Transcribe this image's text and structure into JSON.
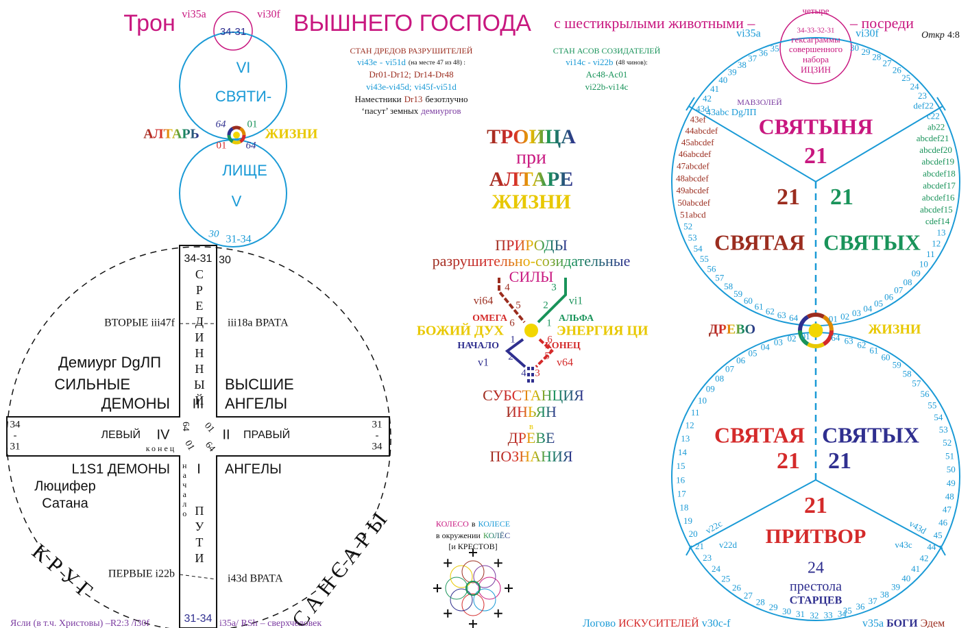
{
  "header": {
    "throne": "Трон",
    "vi35a": "vi35a",
    "inner": "34-31",
    "vi30f": "vi30f",
    "title": "ВЫШНЕГО ГОСПОДА",
    "with": "с шестикрылыми животными –",
    "middle": "– посреди",
    "ref": "Откр",
    "ref_verse": "4:8"
  },
  "hexagrams": {
    "lines": [
      "четыре",
      "34-33-32-31",
      "гексаграммы",
      "совершенного",
      "набора",
      "ИЦЗИН"
    ],
    "vi35a": "vi35a",
    "vi30f": "vi30f"
  },
  "altar_circles": {
    "vi": "VI",
    "holy": "СВЯТИ-",
    "altar": "АЛТАРЬ",
    "life": "ЖИЗНИ",
    "n64_top": "64",
    "n01_top": "01",
    "n01_bottom": "01",
    "n64_bottom": "64",
    "face": "ЛИЩЕ",
    "v": "V",
    "n30": "30",
    "n31_34": "31-34"
  },
  "cross": {
    "top_box": "34-31",
    "top_30": "30",
    "middle": "СРЕДИННЫЙ",
    "iii": "III",
    "second_left": "ВТОРЫЕ iii47f",
    "second_right": "iii18a ВРАТА",
    "demiurge": "Демиург DgЛП",
    "strong": "СИЛЬНЫЕ",
    "demons_top": "ДЕМОНЫ",
    "higher": "ВЫСШИЕ",
    "angels_top": "АНГЕЛЫ",
    "left_end": [
      "34",
      "-",
      "31"
    ],
    "left": "ЛЕВЫЙ",
    "iv": "IV",
    "end": "конец",
    "n64a": "64",
    "n01a": "01",
    "n01b": "01",
    "n64b": "64",
    "ii": "II",
    "right": "ПРАВЫЙ",
    "right_end": [
      "31",
      "-",
      "34"
    ],
    "l1s1": "L1S1 ДЕМОНЫ",
    "lucifer": "Люцифер",
    "satan": "Сатана",
    "i": "I",
    "angels_bottom": "АНГЕЛЫ",
    "beginning": "начало",
    "path": "ПУТИ",
    "first_left": "ПЕРВЫЕ i22b",
    "first_right": "i43d ВРАТА",
    "bottom_box": "31-34",
    "circle": "КРУГ",
    "samsara": "САНСАРЫ"
  },
  "destroyers": {
    "title": "СТАН ДРЕДОВ РАЗРУШИТЕЛЕЙ",
    "range_from": "vi43e",
    "dash": "-",
    "range_to": "vi51d",
    "place": "(на месте 47 из 48) :",
    "dr_a": "Dr01-Dr12;",
    "dr_b": "Dr14-Dr48",
    "vi_a": "vi43e-vi45d;",
    "vi_b": "vi45f-vi51d",
    "deputies": "Наместники",
    "dr13": "Dr13",
    "constantly": "безотлучно",
    "graze": "‘пасут’ земных",
    "demiurges": "демиургов"
  },
  "creators": {
    "title": "СТАН АСОВ СОЗИДАТЕЛЕЙ",
    "range": "vi14c - vi22b",
    "count": "(48 чинов):",
    "ac": "Ac48-Ac01",
    "vi": "vi22b-vi14c"
  },
  "trinity": {
    "trinity": "ТРОИЦА",
    "at": "при",
    "altar": "АЛТАРЕ",
    "life": "ЖИЗНИ"
  },
  "forces": {
    "nature": "ПРИРОДЫ",
    "kind": "разрушительно-созидательные",
    "forces": "СИЛЫ"
  },
  "tree": {
    "vi64": "vi64",
    "vi1": "vi1",
    "omega": "ОМЕГА",
    "alpha": "АЛЬФА",
    "spirit": "БОЖИЙ ДУХ",
    "qi": "ЭНЕРГИЯ ЦИ",
    "beginning": "НАЧАЛО",
    "end": "КОНЕЦ",
    "v1": "v1",
    "v64": "v64",
    "upper_left": [
      "4",
      "5",
      "6"
    ],
    "upper_right": [
      "3",
      "2",
      "1"
    ],
    "lower_left": [
      "1",
      "2",
      "4"
    ],
    "lower_right": [
      "6",
      "5",
      "3"
    ]
  },
  "substance": {
    "substance": "СУБСТАНЦИЯ",
    "yinyang": "ИНЬЯН",
    "in": "в",
    "tree": "ДРЕВЕ",
    "knowledge": "ПОЗНАНИЯ"
  },
  "wheels": {
    "wheel": "КОЛЕСО",
    "in": "в",
    "wheel2": "КОЛЕСЕ",
    "surround": "в окружении",
    "wheels": "КОЛЁС",
    "crosses": "[и КРЕСТОВ]"
  },
  "wheel_right": {
    "mausoleum": "МАВЗОЛЕЙ",
    "dg": "43abc DgЛП",
    "upper_left": [
      "35",
      "36",
      "37",
      "38",
      "39",
      "40",
      "41",
      "42",
      "43d",
      "43ef",
      "44abcdef",
      "45abcdef",
      "46abcdef",
      "47abcdef",
      "48abcdef",
      "49abcdef",
      "50abcdef",
      "51abcd",
      "52",
      "53",
      "54",
      "55",
      "56",
      "57",
      "58",
      "59",
      "60",
      "61",
      "62",
      "63",
      "64"
    ],
    "upper_right": [
      "30",
      "29",
      "28",
      "27",
      "26",
      "25",
      "24",
      "23",
      "def22",
      "c22",
      "ab22",
      "abcdef21",
      "abcdef20",
      "abcdef19",
      "abcdef18",
      "abcdef17",
      "abcdef16",
      "abcdef15",
      "cdef14",
      "13",
      "12",
      "11",
      "10",
      "09",
      "08",
      "07",
      "06",
      "05",
      "04",
      "03",
      "02",
      "01"
    ],
    "lower_left": [
      "01",
      "02",
      "03",
      "04",
      "05",
      "06",
      "07",
      "08",
      "09",
      "10",
      "11",
      "12",
      "13",
      "14",
      "15",
      "16",
      "17",
      "18",
      "19",
      "20",
      "21",
      "23",
      "24",
      "25",
      "26",
      "27",
      "28",
      "29",
      "30",
      "31",
      "32",
      "33",
      "34"
    ],
    "lower_right": [
      "64",
      "63",
      "62",
      "61",
      "60",
      "59",
      "58",
      "57",
      "56",
      "55",
      "54",
      "53",
      "52",
      "51",
      "50",
      "49",
      "48",
      "47",
      "46",
      "45",
      "44",
      "42",
      "41",
      "40",
      "39",
      "38",
      "37",
      "36",
      "35"
    ],
    "sanctuary": "СВЯТЫНЯ",
    "n21_top": "21",
    "n21_left": "21",
    "n21_right": "21",
    "holy_left": "СВЯТАЯ",
    "holies_right": "СВЯТЫХ",
    "tree": "ДРЕВО",
    "life": "ЖИЗНИ",
    "holy_left2": "СВЯТАЯ",
    "holies_right2": "СВЯТЫХ",
    "n21_left2": "21",
    "n21_right2": "21",
    "n21_porch": "21",
    "porch": "ПРИТВОР",
    "n24": "24",
    "thrones": "престола",
    "elders": "СТАРЦЕВ",
    "v22c": "v22c",
    "v22d": "v22d",
    "v43d": "v43d",
    "v43c": "v43c"
  },
  "footer": {
    "manger": "Ясли (в т.ч. Христовы) –R2:3 /i30f",
    "rsh": "i35a/ RSh",
    "superman": "– сверхчеловек",
    "lair": "Логово",
    "tempters": "ИСКУСИТЕЛЕЙ",
    "v30": "v30c-f",
    "v35a": "v35a",
    "gods": "БОГИ",
    "eden": "Эдем"
  }
}
